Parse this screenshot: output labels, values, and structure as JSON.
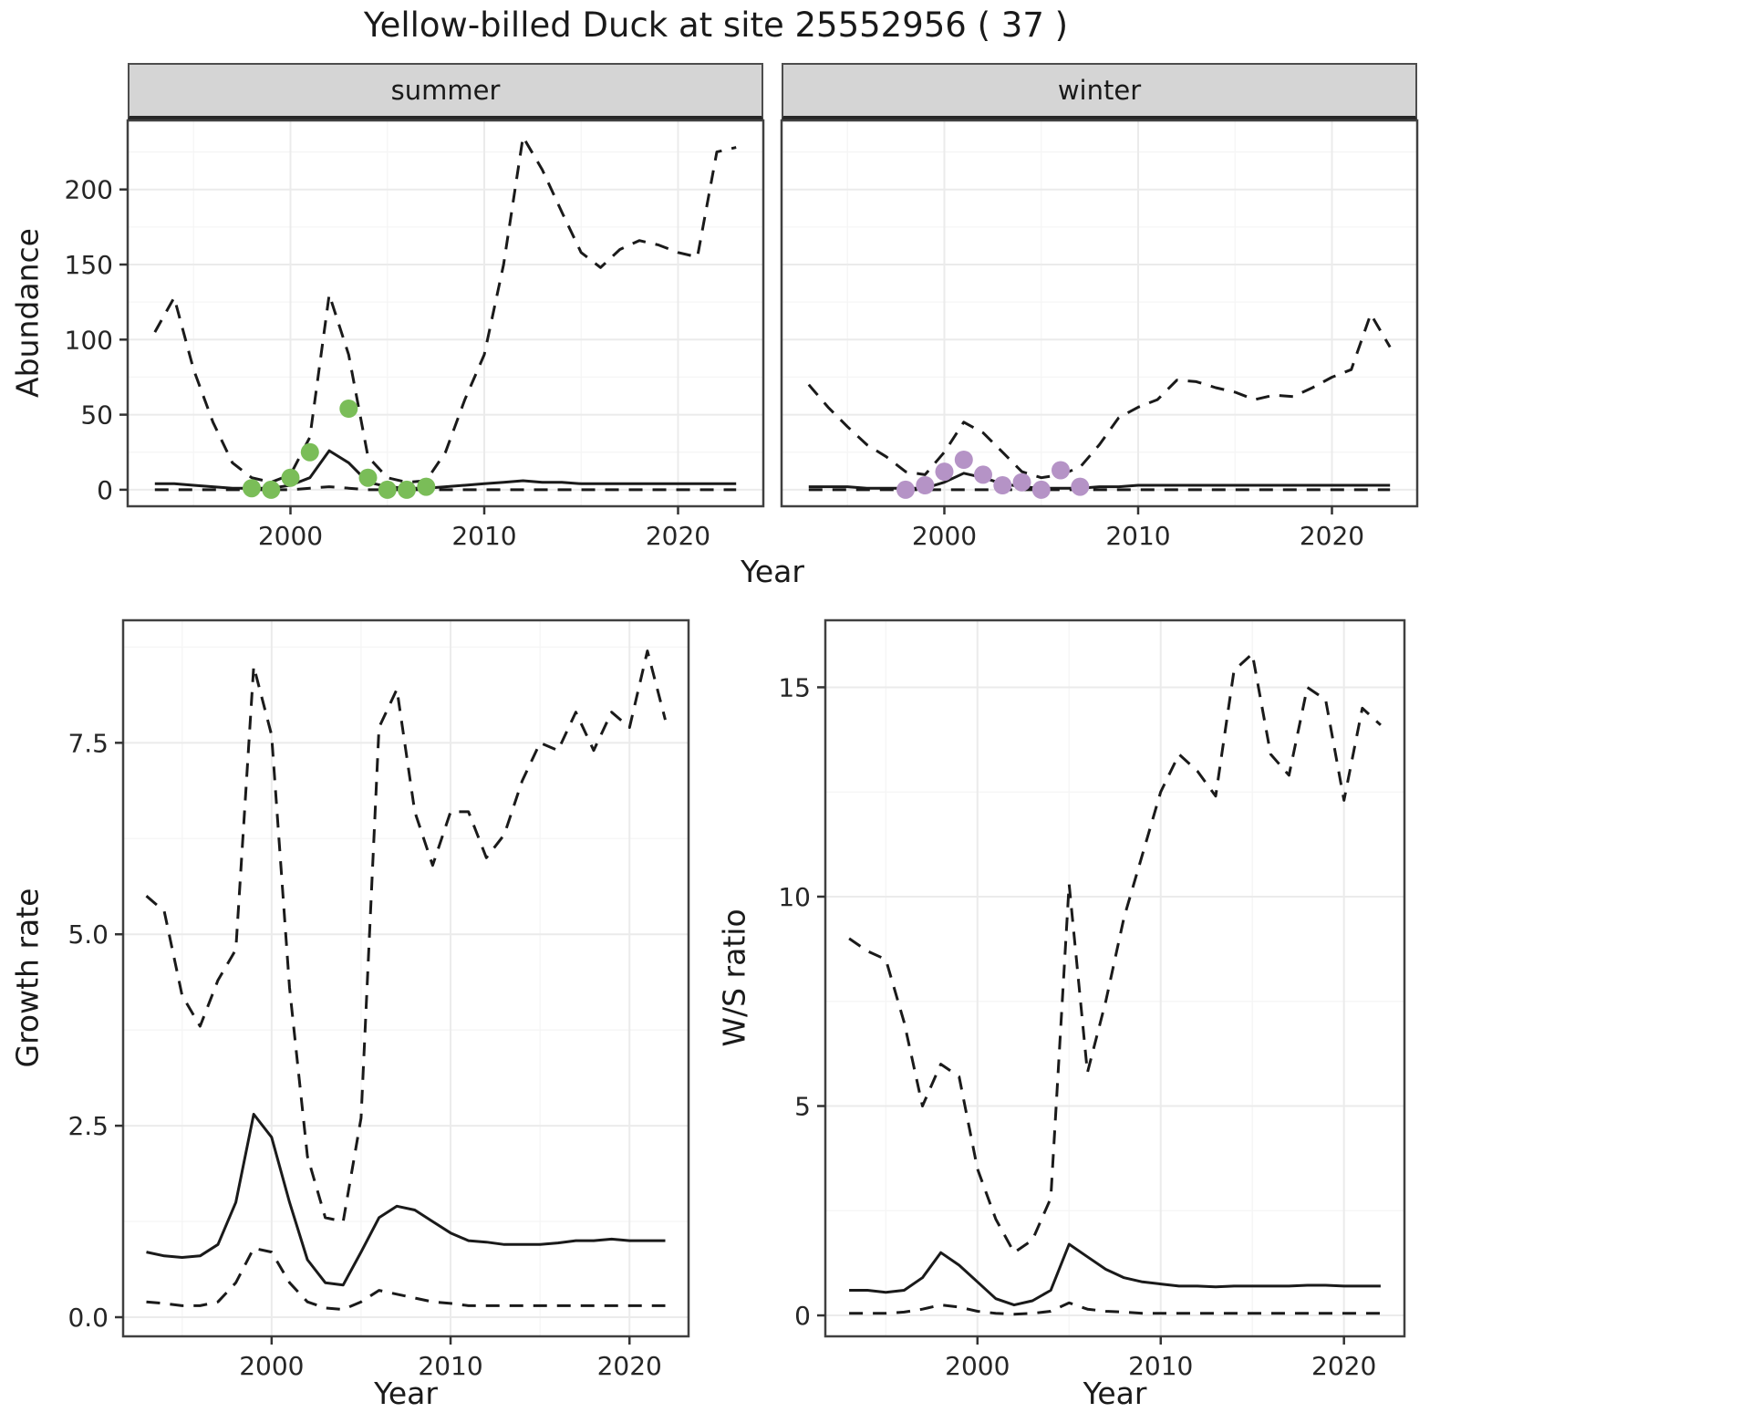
{
  "title": "Yellow-billed Duck at site 25552956 ( 37 )",
  "facets": {
    "summer": "summer",
    "winter": "winter"
  },
  "axis_labels": {
    "abundance": "Abundance",
    "year": "Year",
    "growth_rate": "Growth rate",
    "ws_ratio": "W/S ratio"
  },
  "colors": {
    "line": "#1a1a1a",
    "summer_points": "#7abd58",
    "winter_points": "#b593c6",
    "strip_bg": "#d5d5d5",
    "grid_major": "#ebebeb",
    "grid_minor": "#f5f5f5",
    "panel_border": "#404040",
    "tick_mark": "#333333"
  },
  "chart_data": [
    {
      "id": "summer-abundance",
      "type": "line",
      "facet": "summer",
      "xlabel": "Year",
      "ylabel": "Abundance",
      "xlim": [
        1991.6,
        2024.4
      ],
      "ylim": [
        -11,
        246
      ],
      "xticks": [
        2000,
        2010,
        2020
      ],
      "xtick_labels": [
        "2000",
        "2010",
        "2020"
      ],
      "xminor": [
        1995,
        2005,
        2015
      ],
      "yticks": [
        0,
        50,
        100,
        150,
        200
      ],
      "ytick_labels": [
        "0",
        "50",
        "100",
        "150",
        "200"
      ],
      "yminor": [
        25,
        75,
        125,
        175,
        225
      ],
      "show_ytick_labels": true,
      "x": [
        1993,
        1994,
        1995,
        1996,
        1997,
        1998,
        1999,
        2000,
        2001,
        2002,
        2003,
        2004,
        2005,
        2006,
        2007,
        2008,
        2009,
        2010,
        2011,
        2012,
        2013,
        2014,
        2015,
        2016,
        2017,
        2018,
        2019,
        2020,
        2021,
        2022,
        2023
      ],
      "series": [
        {
          "name": "upper-ci",
          "style": "dashed",
          "color": "#1a1a1a",
          "values": [
            105,
            128,
            80,
            45,
            18,
            8,
            5,
            10,
            35,
            130,
            90,
            22,
            8,
            5,
            6,
            25,
            60,
            90,
            150,
            235,
            213,
            185,
            158,
            148,
            160,
            166,
            163,
            158,
            155,
            225,
            228
          ]
        },
        {
          "name": "median",
          "style": "solid",
          "color": "#1a1a1a",
          "values": [
            4,
            4,
            3,
            2,
            1,
            1,
            1,
            3,
            8,
            26,
            18,
            5,
            2,
            1,
            1,
            2,
            3,
            4,
            5,
            6,
            5,
            5,
            4,
            4,
            4,
            4,
            4,
            4,
            4,
            4,
            4
          ]
        },
        {
          "name": "lower-ci",
          "style": "dashed",
          "color": "#1a1a1a",
          "values": [
            0,
            0,
            0,
            0,
            0,
            0,
            0,
            0,
            1,
            2,
            1,
            0,
            0,
            0,
            0,
            0,
            0,
            0,
            0,
            0,
            0,
            0,
            0,
            0,
            0,
            0,
            0,
            0,
            0,
            0,
            0
          ]
        }
      ],
      "points": {
        "name": "observed-count",
        "color": "#7abd58",
        "x": [
          1998,
          1999,
          2000,
          2001,
          2003,
          2004,
          2005,
          2006,
          2007
        ],
        "y": [
          1,
          0,
          8,
          25,
          54,
          8,
          0,
          0,
          2
        ]
      }
    },
    {
      "id": "winter-abundance",
      "type": "line",
      "facet": "winter",
      "xlabel": "Year",
      "ylabel": "Abundance",
      "xlim": [
        1991.6,
        2024.4
      ],
      "ylim": [
        -11,
        246
      ],
      "xticks": [
        2000,
        2010,
        2020
      ],
      "xtick_labels": [
        "2000",
        "2010",
        "2020"
      ],
      "xminor": [
        1995,
        2005,
        2015
      ],
      "yticks": [
        0,
        50,
        100,
        150,
        200
      ],
      "ytick_labels": [
        "0",
        "50",
        "100",
        "150",
        "200"
      ],
      "yminor": [
        25,
        75,
        125,
        175,
        225
      ],
      "show_ytick_labels": false,
      "x": [
        1993,
        1994,
        1995,
        1996,
        1997,
        1998,
        1999,
        2000,
        2001,
        2002,
        2003,
        2004,
        2005,
        2006,
        2007,
        2008,
        2009,
        2010,
        2011,
        2012,
        2013,
        2014,
        2015,
        2016,
        2017,
        2018,
        2019,
        2020,
        2021,
        2022,
        2023
      ],
      "series": [
        {
          "name": "upper-ci",
          "style": "dashed",
          "color": "#1a1a1a",
          "values": [
            70,
            55,
            42,
            30,
            22,
            12,
            10,
            25,
            45,
            38,
            25,
            12,
            8,
            10,
            15,
            30,
            48,
            55,
            60,
            73,
            72,
            68,
            65,
            60,
            63,
            62,
            68,
            75,
            80,
            117,
            95
          ]
        },
        {
          "name": "median",
          "style": "solid",
          "color": "#1a1a1a",
          "values": [
            2,
            2,
            2,
            1,
            1,
            1,
            1,
            5,
            11,
            8,
            4,
            2,
            1,
            1,
            1,
            2,
            2,
            3,
            3,
            3,
            3,
            3,
            3,
            3,
            3,
            3,
            3,
            3,
            3,
            3,
            3
          ]
        },
        {
          "name": "lower-ci",
          "style": "dashed",
          "color": "#1a1a1a",
          "values": [
            0,
            0,
            0,
            0,
            0,
            0,
            0,
            0,
            0,
            0,
            0,
            0,
            0,
            0,
            0,
            0,
            0,
            0,
            0,
            0,
            0,
            0,
            0,
            0,
            0,
            0,
            0,
            0,
            0,
            0,
            0
          ]
        }
      ],
      "points": {
        "name": "observed-count",
        "color": "#b593c6",
        "x": [
          1998,
          1999,
          2000,
          2001,
          2002,
          2003,
          2004,
          2005,
          2006,
          2007
        ],
        "y": [
          0,
          3,
          12,
          20,
          10,
          3,
          5,
          0,
          13,
          2
        ]
      }
    },
    {
      "id": "growth-rate",
      "type": "line",
      "facet": null,
      "xlabel": "Year",
      "ylabel": "Growth rate",
      "xlim": [
        1991.7,
        2023.3
      ],
      "ylim": [
        -0.25,
        9.1
      ],
      "xticks": [
        2000,
        2010,
        2020
      ],
      "xtick_labels": [
        "2000",
        "2010",
        "2020"
      ],
      "xminor": [
        1995,
        2005,
        2015
      ],
      "yticks": [
        0,
        2.5,
        5,
        7.5
      ],
      "ytick_labels": [
        "0.0",
        "2.5",
        "5.0",
        "7.5"
      ],
      "yminor": [
        1.25,
        3.75,
        6.25,
        8.75
      ],
      "show_ytick_labels": true,
      "x": [
        1993,
        1994,
        1995,
        1996,
        1997,
        1998,
        1999,
        2000,
        2001,
        2002,
        2003,
        2004,
        2005,
        2006,
        2007,
        2008,
        2009,
        2010,
        2011,
        2012,
        2013,
        2014,
        2015,
        2016,
        2017,
        2018,
        2019,
        2020,
        2021,
        2022
      ],
      "series": [
        {
          "name": "upper-ci",
          "style": "dashed",
          "color": "#1a1a1a",
          "values": [
            5.5,
            5.3,
            4.2,
            3.8,
            4.4,
            4.8,
            8.5,
            7.6,
            4.3,
            2.1,
            1.3,
            1.25,
            2.6,
            7.7,
            8.2,
            6.6,
            5.9,
            6.6,
            6.6,
            6.0,
            6.3,
            7.0,
            7.5,
            7.4,
            7.9,
            7.4,
            7.9,
            7.7,
            8.7,
            7.8
          ]
        },
        {
          "name": "median",
          "style": "solid",
          "color": "#1a1a1a",
          "values": [
            0.85,
            0.8,
            0.78,
            0.8,
            0.95,
            1.5,
            2.65,
            2.35,
            1.5,
            0.75,
            0.45,
            0.42,
            0.85,
            1.3,
            1.45,
            1.4,
            1.25,
            1.1,
            1.0,
            0.98,
            0.95,
            0.95,
            0.95,
            0.97,
            1.0,
            1.0,
            1.02,
            1.0,
            1.0,
            1.0
          ]
        },
        {
          "name": "lower-ci",
          "style": "dashed",
          "color": "#1a1a1a",
          "values": [
            0.2,
            0.18,
            0.15,
            0.15,
            0.2,
            0.45,
            0.9,
            0.85,
            0.45,
            0.2,
            0.12,
            0.1,
            0.2,
            0.35,
            0.3,
            0.25,
            0.2,
            0.18,
            0.15,
            0.15,
            0.15,
            0.15,
            0.15,
            0.15,
            0.15,
            0.15,
            0.15,
            0.15,
            0.15,
            0.15
          ]
        }
      ],
      "points": null
    },
    {
      "id": "ws-ratio",
      "type": "line",
      "facet": null,
      "xlabel": "Year",
      "ylabel": "W/S ratio",
      "xlim": [
        1991.7,
        2023.3
      ],
      "ylim": [
        -0.5,
        16.6
      ],
      "xticks": [
        2000,
        2010,
        2020
      ],
      "xtick_labels": [
        "2000",
        "2010",
        "2020"
      ],
      "xminor": [
        1995,
        2005,
        2015
      ],
      "yticks": [
        0,
        5,
        10,
        15
      ],
      "ytick_labels": [
        "0",
        "5",
        "10",
        "15"
      ],
      "yminor": [
        2.5,
        7.5,
        12.5
      ],
      "show_ytick_labels": true,
      "x": [
        1993,
        1994,
        1995,
        1996,
        1997,
        1998,
        1999,
        2000,
        2001,
        2002,
        2003,
        2004,
        2005,
        2006,
        2007,
        2008,
        2009,
        2010,
        2011,
        2012,
        2013,
        2014,
        2015,
        2016,
        2017,
        2018,
        2019,
        2020,
        2021,
        2022
      ],
      "series": [
        {
          "name": "upper-ci",
          "style": "dashed",
          "color": "#1a1a1a",
          "values": [
            9.0,
            8.7,
            8.5,
            7.0,
            5.0,
            6.0,
            5.7,
            3.5,
            2.3,
            1.5,
            1.8,
            2.8,
            10.3,
            5.8,
            7.5,
            9.5,
            11.0,
            12.5,
            13.4,
            13.0,
            12.4,
            15.4,
            15.8,
            13.4,
            12.9,
            15.0,
            14.7,
            12.3,
            14.5,
            14.1
          ]
        },
        {
          "name": "median",
          "style": "solid",
          "color": "#1a1a1a",
          "values": [
            0.6,
            0.6,
            0.55,
            0.6,
            0.9,
            1.5,
            1.2,
            0.8,
            0.4,
            0.25,
            0.35,
            0.6,
            1.7,
            1.4,
            1.1,
            0.9,
            0.8,
            0.75,
            0.7,
            0.7,
            0.68,
            0.7,
            0.7,
            0.7,
            0.7,
            0.72,
            0.72,
            0.7,
            0.7,
            0.7
          ]
        },
        {
          "name": "lower-ci",
          "style": "dashed",
          "color": "#1a1a1a",
          "values": [
            0.05,
            0.05,
            0.05,
            0.08,
            0.15,
            0.25,
            0.2,
            0.1,
            0.05,
            0.03,
            0.05,
            0.1,
            0.3,
            0.15,
            0.1,
            0.08,
            0.05,
            0.05,
            0.05,
            0.05,
            0.05,
            0.05,
            0.05,
            0.05,
            0.05,
            0.05,
            0.05,
            0.05,
            0.05,
            0.05
          ]
        }
      ],
      "points": null
    }
  ]
}
